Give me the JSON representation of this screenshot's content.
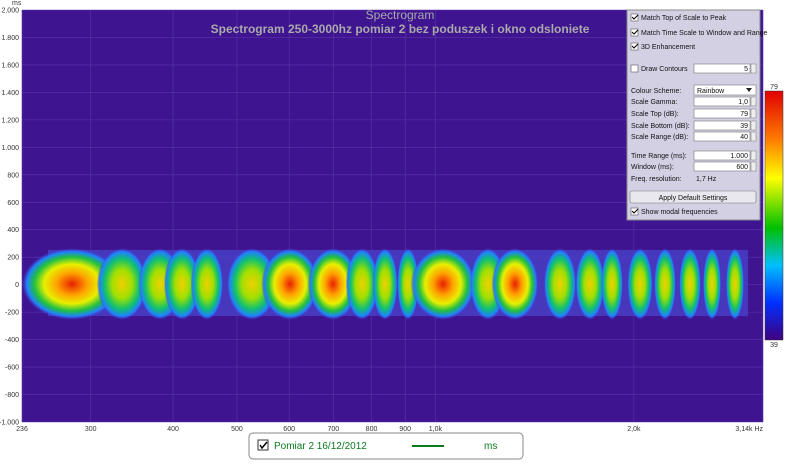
{
  "header": {
    "unit": "ms",
    "title": "Spectrogram",
    "subtitle": "Spectrogram 250-3000hz pomiar 2 bez poduszek i okno odsloniete"
  },
  "y_axis": {
    "lim": [
      -1000,
      2000
    ],
    "ticks": [
      {
        "value": 2000,
        "label": "2.000"
      },
      {
        "value": 1800,
        "label": "1.800"
      },
      {
        "value": 1600,
        "label": "1.600"
      },
      {
        "value": 1400,
        "label": "1.400"
      },
      {
        "value": 1200,
        "label": "1.200"
      },
      {
        "value": 1000,
        "label": "1.000"
      },
      800,
      600,
      400,
      200,
      0,
      -200,
      -400,
      -600,
      -800,
      {
        "value": -1000,
        "label": "-1.000"
      }
    ]
  },
  "x_axis": {
    "lim": [
      236,
      3140
    ],
    "log": true,
    "ticks": [
      236,
      300,
      400,
      500,
      600,
      700,
      800,
      900,
      {
        "value": 1000,
        "label": "1,0k"
      },
      {
        "value": 2000,
        "label": "2,0k"
      },
      {
        "value": 3140,
        "label": "3,14k Hz"
      }
    ]
  },
  "colorbar": {
    "top": "79",
    "bottom": "39"
  },
  "panel": {
    "match_top": "Match Top of Scale to Peak",
    "match_time": "Match Time Scale to Window and Range",
    "enhancement": "3D Enhancement",
    "contours": {
      "label": "Draw Contours",
      "value": "5"
    },
    "scheme": {
      "label": "Colour Scheme:",
      "value": "Rainbow"
    },
    "fields": [
      {
        "label": "Scale Gamma:",
        "value": "1,0"
      },
      {
        "label": "Scale Top (dB):",
        "value": "79"
      },
      {
        "label": "Scale Bottom (dB):",
        "value": "39"
      },
      {
        "label": "Scale Range (dB):",
        "value": "40"
      },
      {
        "label": "Time Range (ms):",
        "value": "1.000"
      },
      {
        "label": "Window (ms):",
        "value": "600"
      }
    ],
    "resolution": {
      "label": "Freq. resolution:",
      "value": "1,7 Hz"
    },
    "button": "Apply Default Settings",
    "modal": "Show modal frequencies"
  },
  "legend": {
    "name": "Pomiar 2 16/12/2012",
    "unit": "ms"
  }
}
